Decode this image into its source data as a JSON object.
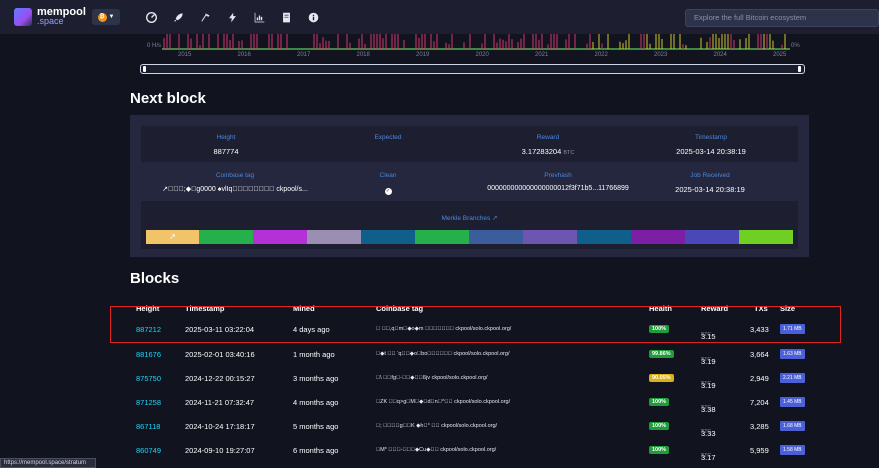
{
  "brand": {
    "line1": "mempool",
    "line2": ".space"
  },
  "nav": {
    "network_icon": "bitcoin-icon",
    "icons": [
      "dashboard-icon",
      "rocket-icon",
      "mining-hammer-icon",
      "lightning-icon",
      "graphs-icon",
      "docs-icon",
      "about-icon"
    ],
    "search_placeholder": "Explore the full Bitcoin ecosystem"
  },
  "hashrate_chart": {
    "y_left_label": "0 H/s",
    "y_right_label": "0%",
    "years": [
      "2015",
      "2016",
      "2017",
      "2018",
      "2019",
      "2020",
      "2021",
      "2022",
      "2023",
      "2024",
      "2025"
    ],
    "colors": {
      "pink": "#d8346e",
      "yellow": "#d2c72a",
      "green": "#4caf50"
    }
  },
  "next_block": {
    "title": "Next block",
    "height_label": "Height",
    "height_value": "887774",
    "expected_label": "Expected",
    "reward_label": "Reward",
    "reward_value": "3.17283204",
    "reward_unit": "BTC",
    "timestamp_label": "Timestamp",
    "timestamp_value": "2025-03-14 20:38:19",
    "coinbase_label": "Coinbase tag",
    "coinbase_value": "↗\u0000\u0000\u0000;◆\u0000g0000 ♠vlIq\u0000\u0000\u0000\u0000\u0000\u0000\u0000\u0000 ckpool/s...",
    "clean_label": "Clean",
    "prevhash_label": "Prevhash",
    "prevhash_value": "000000000000000000012f3f71b5...11766899",
    "job_label": "Job Received",
    "job_value": "2025-03-14 20:38:19",
    "merkle_label": "Merkle Branches",
    "merkle_colors": [
      "#f2c468",
      "#25b04c",
      "#b431d8",
      "#9a8eb2",
      "#0f5f8a",
      "#25b04c",
      "#3c5d9c",
      "#6d55b2",
      "#0f5f8a",
      "#7d1fa4",
      "#4a48b9",
      "#6fcf22"
    ]
  },
  "blocks": {
    "title": "Blocks",
    "headers": {
      "height": "Height",
      "timestamp": "Timestamp",
      "mined": "Mined",
      "coinbase": "Coinbase tag",
      "health": "Health",
      "reward": "Reward",
      "txs": "TXs",
      "size": "Size"
    },
    "reward_unit": "BTC",
    "rows": [
      {
        "height": "887212",
        "timestamp": "2025-03-11 03:22:04",
        "mined": "4 days ago",
        "coinbase": "\u0000 \u0000\u0000,q\u0000m\u0000◆o◆m \u0000\u0000\u0000\u0000\u0000\u0000\u0000 ckpool/solo.ckpool.org/",
        "health": "100%",
        "health_color": "#1f9d3a",
        "reward": "3.15",
        "txs": "3,433",
        "size": "1.71 MB"
      },
      {
        "height": "881676",
        "timestamp": "2025-02-01 03:40:16",
        "mined": "1 month ago",
        "coinbase": "\u0000◆t \u0000\u0000 ‘q\u0000\u0000◆o\u0000bo\u0000\u0000\u0000\u0000\u0000\u0000 ckpool/solo.ckpool.org/",
        "health": "99.86%",
        "health_color": "#1f9d3a",
        "reward": "3.19",
        "txs": "3,664",
        "size": "1.63 MB"
      },
      {
        "height": "875750",
        "timestamp": "2024-12-22 00:15:27",
        "mined": "3 months ago",
        "coinbase": "\u0000\\ \u0000\u0000fg\u0000-\u0000\u0000◆\u0000\u0000ßjv ckpool/solo.ckpool.org/",
        "health": "90.05%",
        "health_color": "#d9b21a",
        "reward": "3.19",
        "txs": "2,949",
        "size": "2.21 MB"
      },
      {
        "height": "871258",
        "timestamp": "2024-11-21 07:32:47",
        "mined": "4 months ago",
        "coinbase": "\u0000ZK \u0000\u0000q>g\u0000M\u0000◆\u0000d\u0000n\u0000^\u0000\u0000 ckpool/solo.ckpool.org/",
        "health": "100%",
        "health_color": "#1f9d3a",
        "reward": "3.38",
        "txs": "7,204",
        "size": "1.45 MB"
      },
      {
        "height": "867118",
        "timestamp": "2024-10-24 17:18:17",
        "mined": "5 months ago",
        "coinbase": "\u0000; \u0000\u0000\u0000\u0000g\u0000\u0000K ◆h\u0000° \u0000\u0000 ckpool/solo.ckpool.org/",
        "health": "100%",
        "health_color": "#1f9d3a",
        "reward": "3.33",
        "txs": "3,285",
        "size": "1.68 MB"
      },
      {
        "height": "860749",
        "timestamp": "2024-09-10 19:27:07",
        "mined": "6 months ago",
        "coinbase": "\u0000M* \u0000\u0000\u0000-\u0000\u0000\u0000◆Cu◆\u0000\u0000 ckpool/solo.ckpool.org/",
        "health": "100%",
        "health_color": "#1f9d3a",
        "reward": "3.17",
        "txs": "5,959",
        "size": "1.58 MB"
      }
    ]
  },
  "status_url": "https://mempool.space/stratum"
}
